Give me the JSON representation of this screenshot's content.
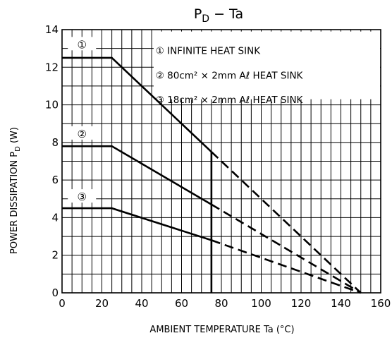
{
  "chart_data": {
    "type": "line",
    "title": "P",
    "title_sub": "D",
    "title_rest": "  −  Ta",
    "xlabel": "AMBIENT TEMPERATURE    Ta    (°C)",
    "ylabel": "POWER DISSIPATION   P",
    "ylabel_sub": "D",
    "ylabel_unit": "   (W)",
    "xlim": [
      0,
      160
    ],
    "ylim": [
      0,
      14
    ],
    "xticks": [
      0,
      20,
      40,
      60,
      80,
      100,
      120,
      140,
      160
    ],
    "yticks": [
      0,
      2,
      4,
      6,
      8,
      10,
      12,
      14
    ],
    "grid": true,
    "legend_position": "top-right",
    "series": [
      {
        "name": "INFINITE HEAT SINK",
        "marker": "①",
        "solid_x": [
          0,
          25,
          75
        ],
        "solid_y": [
          12.5,
          12.5,
          7.5
        ],
        "dashed_x": [
          75,
          150
        ],
        "dashed_y": [
          7.5,
          0
        ],
        "label_at": {
          "x": 10,
          "y": 13.2
        }
      },
      {
        "name": "80cm² × 2mm Aℓ HEAT SINK",
        "marker": "②",
        "solid_x": [
          0,
          25,
          75
        ],
        "solid_y": [
          7.8,
          7.8,
          4.7
        ],
        "dashed_x": [
          75,
          150
        ],
        "dashed_y": [
          4.7,
          0
        ],
        "label_at": {
          "x": 10,
          "y": 8.45
        }
      },
      {
        "name": "18cm² × 2mm Aℓ HEAT SINK",
        "marker": "③",
        "solid_x": [
          0,
          25,
          75
        ],
        "solid_y": [
          4.5,
          4.5,
          2.8
        ],
        "dashed_x": [
          75,
          150
        ],
        "dashed_y": [
          2.8,
          0
        ],
        "label_at": {
          "x": 10,
          "y": 5.1
        }
      }
    ],
    "annotations": [
      {
        "type": "vline",
        "x": 75,
        "y_from": 0,
        "y_to": 7.5
      }
    ]
  }
}
